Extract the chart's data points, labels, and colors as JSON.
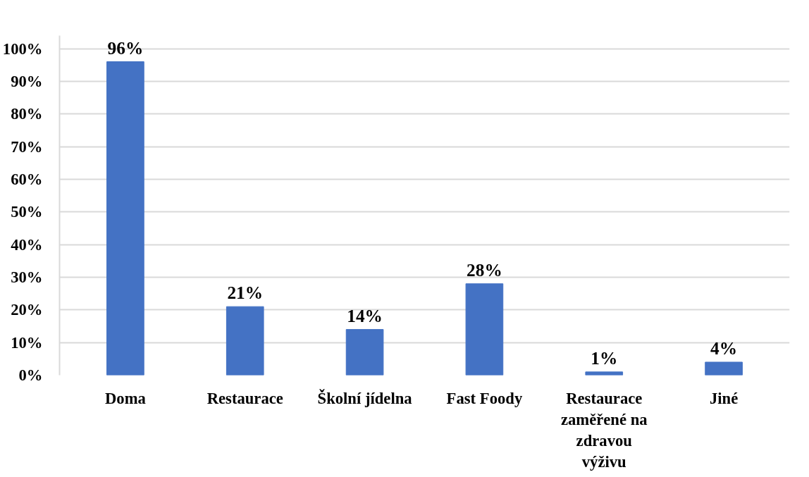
{
  "chart_data": {
    "type": "bar",
    "categories": [
      "Doma",
      "Restaurace",
      "Školní jídelna",
      "Fast Foody",
      "Restaurace zaměřené na zdravou výživu",
      "Jiné"
    ],
    "values": [
      96,
      21,
      14,
      28,
      1,
      4
    ],
    "color": "#4472c4",
    "value_labels": [
      "96%",
      "21%",
      "14%",
      "28%",
      "1%",
      "4%"
    ],
    "ylim": [
      0,
      104
    ],
    "yticks": [
      {
        "value": 0,
        "label": "0%"
      },
      {
        "value": 10,
        "label": "10%"
      },
      {
        "value": 20,
        "label": "20%"
      },
      {
        "value": 30,
        "label": "30%"
      },
      {
        "value": 40,
        "label": "40%"
      },
      {
        "value": 50,
        "label": "50%"
      },
      {
        "value": 60,
        "label": "60%"
      },
      {
        "value": 70,
        "label": "70%"
      },
      {
        "value": 80,
        "label": "80%"
      },
      {
        "value": 90,
        "label": "90%"
      },
      {
        "value": 100,
        "label": "100%"
      }
    ],
    "grid": "y"
  }
}
